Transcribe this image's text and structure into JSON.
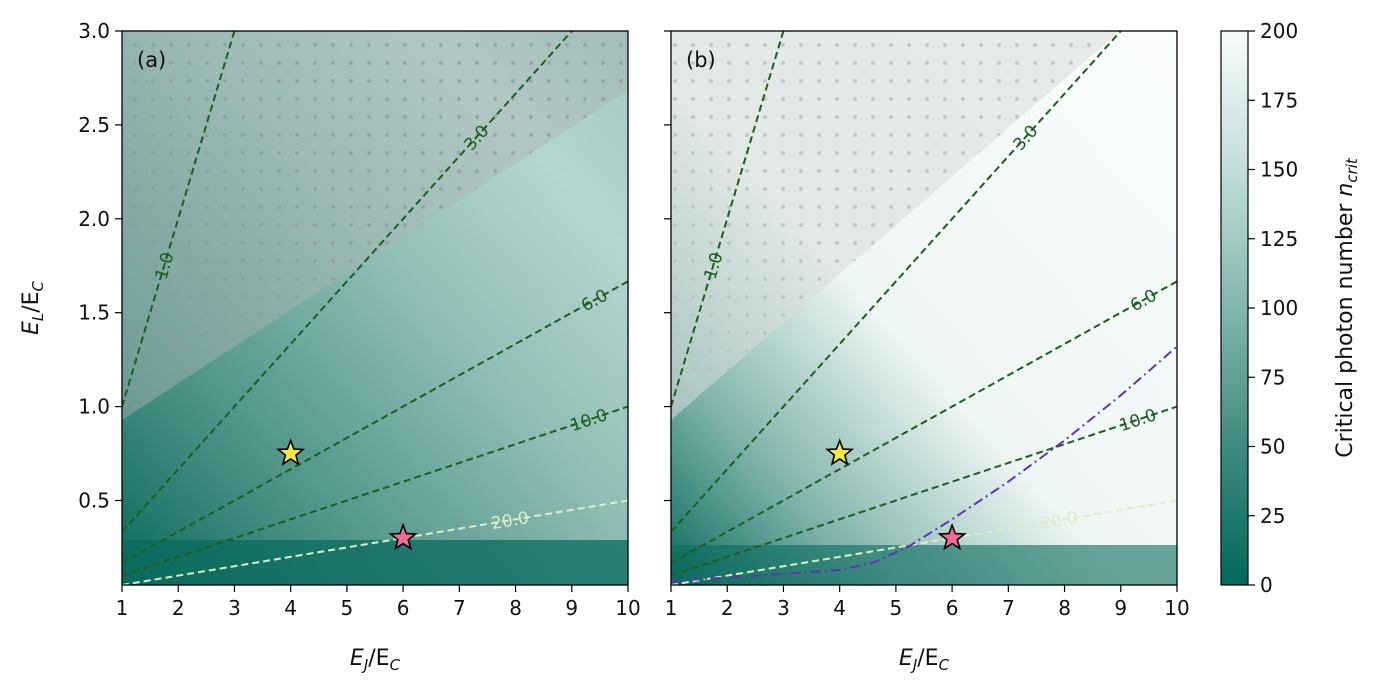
{
  "chart_data": [
    {
      "type": "heatmap",
      "panel": "(a)",
      "xlabel_main": "E",
      "xlabel_sub1": "J",
      "xlabel_sep": "/E",
      "xlabel_sub2": "C",
      "ylabel_main": "E",
      "ylabel_sub1": "L",
      "ylabel_sep": "/E",
      "ylabel_sub2": "C",
      "xlim": [
        1,
        10
      ],
      "ylim": [
        0.05,
        3.0
      ],
      "xticks": [
        "1",
        "2",
        "3",
        "4",
        "5",
        "6",
        "7",
        "8",
        "9",
        "10"
      ],
      "yticks": [
        "0.5",
        "1.0",
        "1.5",
        "2.0",
        "2.5",
        "3.0"
      ],
      "contours": [
        {
          "label": "1.0",
          "slope": 1.0
        },
        {
          "label": "3.0",
          "slope": 0.3333
        },
        {
          "label": "6.0",
          "slope": 0.1667
        },
        {
          "label": "10.0",
          "slope": 0.1
        },
        {
          "label": "20.0",
          "slope": 0.05
        }
      ],
      "markers": [
        {
          "name": "yellow-star",
          "x": 4,
          "y": 0.75,
          "color": "#f5e94a"
        },
        {
          "name": "pink-star",
          "x": 6,
          "y": 0.3,
          "color": "#ee6b96"
        }
      ]
    },
    {
      "type": "heatmap",
      "panel": "(b)",
      "xlabel_main": "E",
      "xlabel_sub1": "J",
      "xlabel_sep": "/E",
      "xlabel_sub2": "C",
      "xlim": [
        1,
        10
      ],
      "ylim": [
        0.05,
        3.0
      ],
      "xticks": [
        "1",
        "2",
        "3",
        "4",
        "5",
        "6",
        "7",
        "8",
        "9",
        "10"
      ],
      "contours": [
        {
          "label": "1.0",
          "slope": 1.0
        },
        {
          "label": "3.0",
          "slope": 0.3333
        },
        {
          "label": "6.0",
          "slope": 0.1667
        },
        {
          "label": "10.0",
          "slope": 0.1
        },
        {
          "label": "20.0",
          "slope": 0.05
        }
      ],
      "boundary_curve": {
        "x": [
          1,
          2,
          3,
          4,
          4.6,
          5.2,
          6,
          7,
          8,
          9,
          10
        ],
        "y": [
          0.07,
          0.09,
          0.11,
          0.13,
          0.17,
          0.25,
          0.4,
          0.6,
          0.82,
          1.06,
          1.32
        ]
      },
      "markers": [
        {
          "name": "yellow-star",
          "x": 4,
          "y": 0.75,
          "color": "#f5e94a"
        },
        {
          "name": "pink-star",
          "x": 6,
          "y": 0.3,
          "color": "#ee6b96"
        }
      ]
    }
  ],
  "colorbar": {
    "label": "Critical photon number ",
    "label_main": "n",
    "label_sub": "crit",
    "ticks": [
      "0",
      "25",
      "50",
      "75",
      "100",
      "125",
      "150",
      "175",
      "200"
    ],
    "range": [
      0,
      200
    ],
    "color_low": "#00695c",
    "color_high": "#f7fcfc"
  },
  "colors": {
    "contour": "#1b5e20",
    "contour_light": "#dcedc8",
    "boundary": "#5e35b1",
    "teal_dark": "#0a6b5d",
    "teal_mid": "#6aa89d",
    "teal_light": "#b9d9d3",
    "grey_region": "#c9cfcd"
  }
}
